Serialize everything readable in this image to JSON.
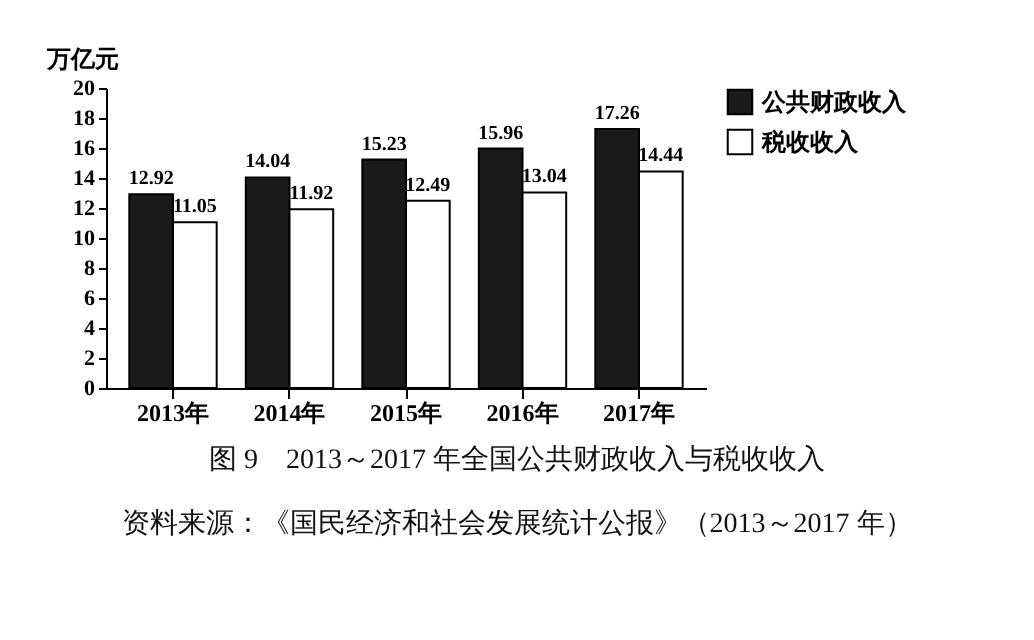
{
  "chart_data": {
    "type": "bar",
    "title": "图 9　2013～2017 年全国公共财政收入与税收收入",
    "ylabel": "万亿元",
    "categories": [
      "2013年",
      "2014年",
      "2015年",
      "2016年",
      "2017年"
    ],
    "series": [
      {
        "name": "公共财政收入",
        "color": "#1a1a1a",
        "values": [
          12.92,
          14.04,
          15.23,
          15.96,
          17.26
        ]
      },
      {
        "name": "税收收入",
        "color": "#ffffff",
        "values": [
          11.05,
          11.92,
          12.49,
          13.04,
          14.44
        ]
      }
    ],
    "ylim": [
      0,
      20
    ],
    "yticks": [
      0,
      2,
      4,
      6,
      8,
      10,
      12,
      14,
      16,
      18,
      20
    ],
    "grid": false,
    "legend": "right",
    "data_labels": true,
    "annotations": [
      "资料来源：《国民经济和社会发展统计公报》（2013～2017 年）"
    ]
  }
}
